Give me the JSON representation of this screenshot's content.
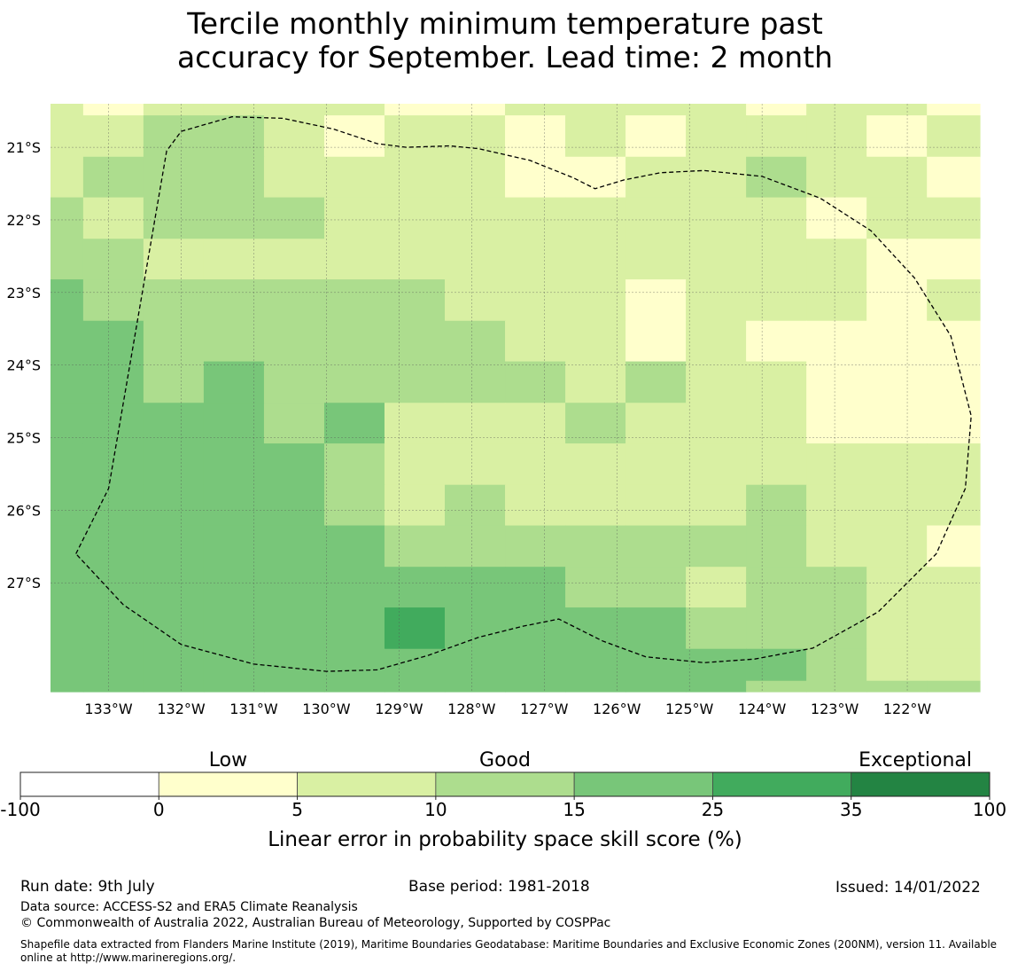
{
  "title": {
    "line1": "Tercile monthly minimum temperature past",
    "line2": "accuracy for September. Lead time: 2 month"
  },
  "map": {
    "lon_labels": [
      "133°W",
      "132°W",
      "131°W",
      "130°W",
      "129°W",
      "128°W",
      "127°W",
      "126°W",
      "125°W",
      "124°W",
      "123°W",
      "122°W"
    ],
    "lat_labels": [
      "21°S",
      "22°S",
      "23°S",
      "24°S",
      "25°S",
      "26°S",
      "27°S"
    ],
    "lon_ticks": [
      -133,
      -132,
      -131,
      -130,
      -129,
      -128,
      -127,
      -126,
      -125,
      -124,
      -123,
      -122
    ],
    "lat_ticks": [
      -21,
      -22,
      -23,
      -24,
      -25,
      -26,
      -27
    ],
    "lon_range": [
      -133.8,
      -121.0
    ],
    "lat_range": [
      -20.4,
      -28.5
    ],
    "grid_lon_edges": [
      -133.8,
      -133.35,
      -132.52,
      -131.69,
      -130.86,
      -130.03,
      -129.2,
      -128.37,
      -127.54,
      -126.71,
      -125.88,
      -125.05,
      -124.22,
      -123.39,
      -122.56,
      -121.73,
      -121.0
    ],
    "grid_lat_edges": [
      -20.4,
      -20.56,
      -21.13,
      -21.69,
      -22.26,
      -22.82,
      -23.39,
      -23.95,
      -24.52,
      -25.08,
      -25.65,
      -26.21,
      -26.78,
      -27.34,
      -27.91,
      -28.35,
      -28.5
    ],
    "cells": [
      [
        2,
        1,
        2,
        2,
        2,
        2,
        1,
        1,
        2,
        2,
        2,
        2,
        1,
        2,
        2,
        1
      ],
      [
        2,
        2,
        3,
        3,
        2,
        1,
        2,
        2,
        1,
        2,
        1,
        2,
        2,
        2,
        1,
        2
      ],
      [
        2,
        3,
        3,
        3,
        2,
        2,
        2,
        2,
        1,
        1,
        2,
        2,
        3,
        2,
        2,
        1
      ],
      [
        3,
        2,
        3,
        3,
        3,
        2,
        2,
        2,
        2,
        2,
        2,
        2,
        2,
        1,
        2,
        2
      ],
      [
        3,
        3,
        2,
        2,
        2,
        2,
        2,
        2,
        2,
        2,
        2,
        2,
        2,
        2,
        1,
        1
      ],
      [
        4,
        3,
        3,
        3,
        3,
        3,
        3,
        2,
        2,
        2,
        1,
        2,
        2,
        2,
        1,
        2
      ],
      [
        4,
        4,
        3,
        3,
        3,
        3,
        3,
        3,
        2,
        2,
        1,
        2,
        1,
        1,
        1,
        1
      ],
      [
        4,
        4,
        3,
        4,
        3,
        3,
        3,
        3,
        3,
        2,
        3,
        2,
        2,
        1,
        1,
        1
      ],
      [
        4,
        4,
        4,
        4,
        3,
        4,
        2,
        2,
        2,
        3,
        2,
        2,
        2,
        1,
        1,
        1
      ],
      [
        4,
        4,
        4,
        4,
        4,
        3,
        2,
        2,
        2,
        2,
        2,
        2,
        2,
        2,
        2,
        2
      ],
      [
        4,
        4,
        4,
        4,
        4,
        3,
        2,
        3,
        2,
        2,
        2,
        2,
        3,
        2,
        2,
        2
      ],
      [
        4,
        4,
        4,
        4,
        4,
        4,
        3,
        3,
        3,
        3,
        3,
        3,
        3,
        2,
        2,
        1
      ],
      [
        4,
        4,
        4,
        4,
        4,
        4,
        4,
        4,
        4,
        3,
        3,
        2,
        3,
        3,
        2,
        2
      ],
      [
        4,
        4,
        4,
        4,
        4,
        4,
        5,
        4,
        4,
        4,
        4,
        3,
        3,
        3,
        2,
        2
      ],
      [
        4,
        4,
        4,
        4,
        4,
        4,
        4,
        4,
        4,
        4,
        4,
        4,
        4,
        3,
        2,
        2
      ],
      [
        4,
        4,
        4,
        4,
        4,
        4,
        4,
        4,
        4,
        4,
        4,
        4,
        3,
        3,
        3,
        3
      ]
    ],
    "eez_boundary": [
      [
        -133.45,
        -26.6
      ],
      [
        -133.0,
        -25.7
      ],
      [
        -132.2,
        -21.05
      ],
      [
        -132.0,
        -20.78
      ],
      [
        -131.3,
        -20.58
      ],
      [
        -130.6,
        -20.6
      ],
      [
        -129.9,
        -20.75
      ],
      [
        -129.3,
        -20.95
      ],
      [
        -128.9,
        -21.0
      ],
      [
        -128.3,
        -20.98
      ],
      [
        -127.9,
        -21.02
      ],
      [
        -127.2,
        -21.18
      ],
      [
        -126.6,
        -21.42
      ],
      [
        -126.3,
        -21.57
      ],
      [
        -125.9,
        -21.45
      ],
      [
        -125.4,
        -21.35
      ],
      [
        -124.8,
        -21.32
      ],
      [
        -124.0,
        -21.4
      ],
      [
        -123.2,
        -21.7
      ],
      [
        -122.5,
        -22.15
      ],
      [
        -121.9,
        -22.8
      ],
      [
        -121.4,
        -23.6
      ],
      [
        -121.12,
        -24.7
      ],
      [
        -121.2,
        -25.7
      ],
      [
        -121.6,
        -26.6
      ],
      [
        -122.4,
        -27.4
      ],
      [
        -123.3,
        -27.9
      ],
      [
        -124.1,
        -28.05
      ],
      [
        -124.8,
        -28.1
      ],
      [
        -125.6,
        -28.02
      ],
      [
        -126.2,
        -27.8
      ],
      [
        -126.8,
        -27.5
      ],
      [
        -127.3,
        -27.6
      ],
      [
        -127.9,
        -27.75
      ],
      [
        -128.6,
        -28.0
      ],
      [
        -129.3,
        -28.2
      ],
      [
        -130.0,
        -28.22
      ],
      [
        -131.0,
        -28.12
      ],
      [
        -132.0,
        -27.85
      ],
      [
        -132.8,
        -27.3
      ],
      [
        -133.45,
        -26.6
      ]
    ],
    "colors": {
      "water_border": "#999999",
      "grid_line": "#555555"
    }
  },
  "colorbar": {
    "category_labels": [
      "Low",
      "Good",
      "Exceptional"
    ],
    "tick_labels": [
      "-100",
      "0",
      "5",
      "10",
      "15",
      "25",
      "35",
      "100"
    ],
    "bin_colors": [
      "#ffffff",
      "#ffffcc",
      "#d9f0a3",
      "#addd8e",
      "#78c679",
      "#41ab5d",
      "#238443"
    ],
    "label": "Linear error in probability space skill score (%)"
  },
  "footer": {
    "run_date": "Run date: 9th July",
    "base_period": "Base period: 1981-2018",
    "issued": "Issued: 14/01/2022",
    "data_source": "Data source: ACCESS-S2 and ERA5 Climate Reanalysis",
    "copyright": "© Commonwealth of Australia 2022, Australian Bureau of Meteorology, Supported by COSPPac",
    "shapefile_note": "Shapefile data extracted from Flanders Marine Institute (2019), Maritime Boundaries Geodatabase: Maritime Boundaries and Exclusive Economic Zones (200NM), version 11. Available online at http://www.marineregions.org/."
  }
}
